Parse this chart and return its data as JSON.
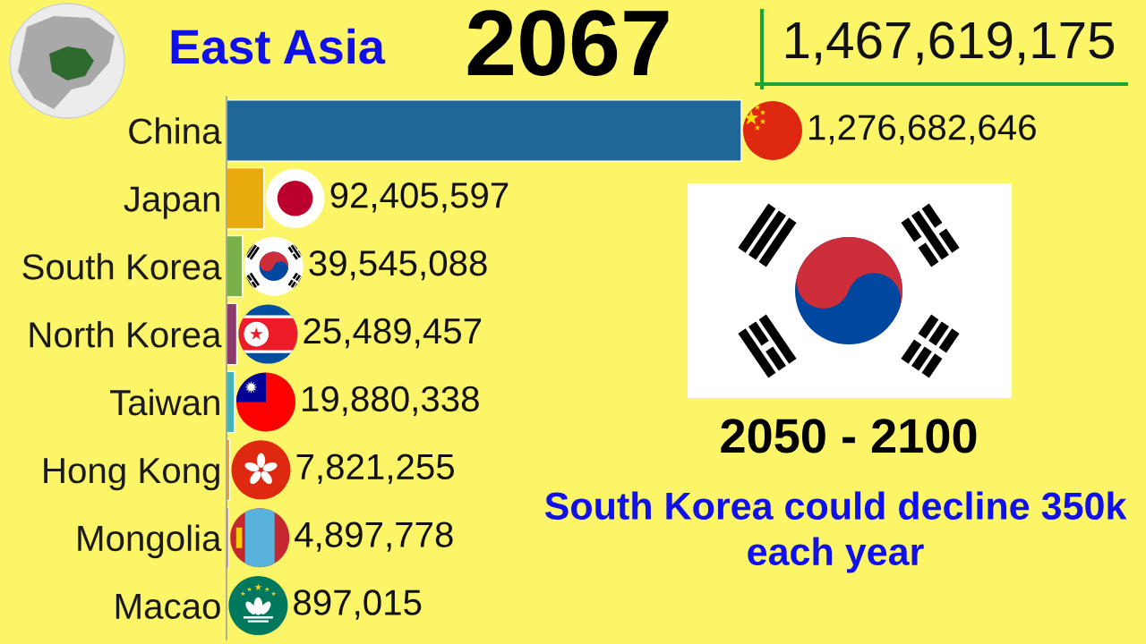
{
  "chart_data": {
    "type": "bar",
    "orientation": "horizontal",
    "title": "East Asia",
    "annotations": [
      "2067",
      "1,467,619,175",
      "2050 - 2100",
      "South Korea could decline 350k\neach year"
    ],
    "categories": [
      "China",
      "Japan",
      "South Korea",
      "North Korea",
      "Taiwan",
      "Hong Kong",
      "Mongolia",
      "Macao"
    ],
    "values": [
      1276682646,
      92405597,
      39545088,
      25489457,
      19880338,
      7821255,
      4897778,
      897015
    ],
    "value_labels": [
      "1,276,682,646",
      "92,405,597",
      "39,545,088",
      "25,489,457",
      "19,880,338",
      "7,821,255",
      "4,897,778",
      "897,015"
    ],
    "colors": [
      "#1f6796",
      "#e8ab0e",
      "#78b14a",
      "#8c3a6c",
      "#43b3b8",
      "#e39a25",
      "#7c3f73",
      "#7fb85a"
    ],
    "tick_labels": "y"
  }
}
